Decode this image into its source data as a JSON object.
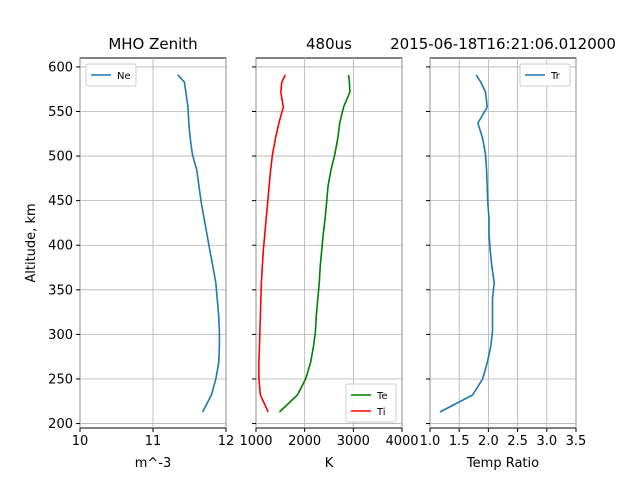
{
  "titles": {
    "left": "MHO Zenith",
    "middle": "480us",
    "right": "2015-06-18T16:21:06.012000"
  },
  "shared_y_axis": {
    "label": "Altitude, km",
    "range": [
      195,
      610
    ],
    "ticks": [
      200,
      250,
      300,
      350,
      400,
      450,
      500,
      550,
      600
    ]
  },
  "colors": {
    "ne": "#1f77b4",
    "te": "#008000",
    "ti": "#ff0000",
    "tr": "#1f77b4",
    "grid": "#b0b0b0"
  },
  "chart_data": [
    {
      "type": "line",
      "title": "MHO Zenith",
      "xlabel": "m^-3",
      "ylabel": "Altitude, km",
      "scale": "log10",
      "xlim": [
        10,
        12
      ],
      "ylim": [
        195,
        610
      ],
      "x_ticks": [
        10,
        11,
        12
      ],
      "x_tick_labels": [
        "10",
        "11",
        "12"
      ],
      "grid": true,
      "legend": "top-left",
      "series": [
        {
          "name": "Ne",
          "points": [
            [
              11.68,
              213
            ],
            [
              11.8,
              232
            ],
            [
              11.86,
              250
            ],
            [
              11.9,
              268
            ],
            [
              11.91,
              286
            ],
            [
              11.91,
              303
            ],
            [
              11.9,
              321
            ],
            [
              11.88,
              340
            ],
            [
              11.86,
              358
            ],
            [
              11.82,
              376
            ],
            [
              11.78,
              394
            ],
            [
              11.74,
              412
            ],
            [
              11.7,
              430
            ],
            [
              11.66,
              448
            ],
            [
              11.63,
              466
            ],
            [
              11.6,
              484
            ],
            [
              11.54,
              502
            ],
            [
              11.51,
              520
            ],
            [
              11.49,
              537
            ],
            [
              11.48,
              555
            ],
            [
              11.45,
              572
            ],
            [
              11.43,
              583
            ],
            [
              11.34,
              591
            ]
          ]
        }
      ]
    },
    {
      "type": "line",
      "title": "480us",
      "xlabel": "K",
      "xlim": [
        1000,
        4000
      ],
      "ylim": [
        195,
        610
      ],
      "x_ticks": [
        1000,
        2000,
        3000,
        4000
      ],
      "x_tick_labels": [
        "1000",
        "2000",
        "3000",
        "4000"
      ],
      "grid": true,
      "legend": "bottom-right",
      "series": [
        {
          "name": "Te",
          "points": [
            [
              1480,
              213
            ],
            [
              1850,
              232
            ],
            [
              2020,
              250
            ],
            [
              2120,
              268
            ],
            [
              2180,
              286
            ],
            [
              2220,
              303
            ],
            [
              2240,
              321
            ],
            [
              2270,
              340
            ],
            [
              2300,
              358
            ],
            [
              2320,
              376
            ],
            [
              2350,
              394
            ],
            [
              2380,
              412
            ],
            [
              2420,
              430
            ],
            [
              2450,
              448
            ],
            [
              2480,
              466
            ],
            [
              2540,
              484
            ],
            [
              2620,
              502
            ],
            [
              2680,
              520
            ],
            [
              2720,
              537
            ],
            [
              2800,
              555
            ],
            [
              2930,
              572
            ],
            [
              2920,
              583
            ],
            [
              2900,
              591
            ]
          ]
        },
        {
          "name": "Ti",
          "points": [
            [
              1250,
              213
            ],
            [
              1090,
              232
            ],
            [
              1060,
              250
            ],
            [
              1060,
              268
            ],
            [
              1070,
              286
            ],
            [
              1080,
              303
            ],
            [
              1090,
              321
            ],
            [
              1100,
              340
            ],
            [
              1110,
              358
            ],
            [
              1130,
              376
            ],
            [
              1150,
              394
            ],
            [
              1180,
              412
            ],
            [
              1210,
              430
            ],
            [
              1240,
              448
            ],
            [
              1270,
              466
            ],
            [
              1300,
              484
            ],
            [
              1340,
              502
            ],
            [
              1400,
              520
            ],
            [
              1470,
              537
            ],
            [
              1560,
              555
            ],
            [
              1510,
              572
            ],
            [
              1530,
              583
            ],
            [
              1600,
              591
            ]
          ]
        }
      ]
    },
    {
      "type": "line",
      "xlabel": "Temp Ratio",
      "xlim": [
        1.0,
        3.5
      ],
      "ylim": [
        195,
        610
      ],
      "x_ticks": [
        1.0,
        1.5,
        2.0,
        2.5,
        3.0,
        3.5
      ],
      "x_tick_labels": [
        "1.0",
        "1.5",
        "2.0",
        "2.5",
        "3.0",
        "3.5"
      ],
      "grid": true,
      "legend": "top-right",
      "series": [
        {
          "name": "Tr",
          "points": [
            [
              1.17,
              213
            ],
            [
              1.73,
              232
            ],
            [
              1.9,
              250
            ],
            [
              1.98,
              268
            ],
            [
              2.04,
              286
            ],
            [
              2.07,
              303
            ],
            [
              2.07,
              321
            ],
            [
              2.07,
              340
            ],
            [
              2.1,
              358
            ],
            [
              2.06,
              376
            ],
            [
              2.03,
              394
            ],
            [
              2.01,
              412
            ],
            [
              2.01,
              430
            ],
            [
              1.99,
              448
            ],
            [
              1.98,
              466
            ],
            [
              1.97,
              484
            ],
            [
              1.95,
              502
            ],
            [
              1.9,
              520
            ],
            [
              1.82,
              537
            ],
            [
              1.98,
              555
            ],
            [
              1.95,
              572
            ],
            [
              1.87,
              583
            ],
            [
              1.79,
              591
            ]
          ]
        }
      ]
    }
  ]
}
